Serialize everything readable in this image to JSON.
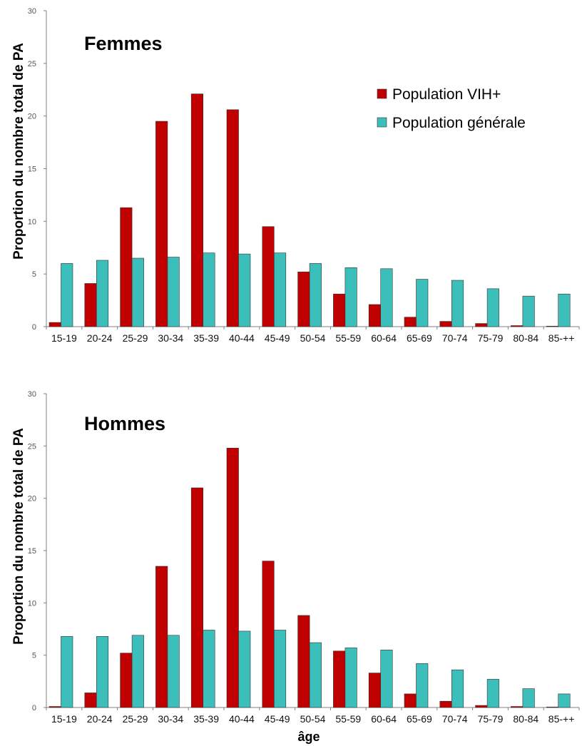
{
  "colors": {
    "vih": "#c00000",
    "generale": "#3cbfbb",
    "axis": "#808080"
  },
  "legend": {
    "series_1": "Population VIH+",
    "series_2": "Population générale"
  },
  "xlabel": "âge",
  "chart_data": [
    {
      "type": "bar",
      "title": "Femmes",
      "ylabel": "Proportion du nombre total de PA",
      "ylim": [
        0,
        30
      ],
      "yticks": [
        0,
        5,
        10,
        15,
        20,
        25,
        30
      ],
      "legend_position": "top-right",
      "categories": [
        "15-19",
        "20-24",
        "25-29",
        "30-34",
        "35-39",
        "40-44",
        "45-49",
        "50-54",
        "55-59",
        "60-64",
        "65-69",
        "70-74",
        "75-79",
        "80-84",
        "85-++"
      ],
      "series": [
        {
          "name": "Population VIH+",
          "values": [
            0.4,
            4.1,
            11.3,
            19.5,
            22.1,
            20.6,
            9.5,
            5.2,
            3.1,
            2.1,
            0.9,
            0.5,
            0.3,
            0.1,
            0.05
          ]
        },
        {
          "name": "Population générale",
          "values": [
            6.0,
            6.3,
            6.5,
            6.6,
            7.0,
            6.9,
            7.0,
            6.0,
            5.6,
            5.5,
            4.5,
            4.4,
            3.6,
            2.9,
            3.1
          ]
        }
      ]
    },
    {
      "type": "bar",
      "title": "Hommes",
      "ylabel": "Proportion du nombre total de PA",
      "xlabel": "âge",
      "ylim": [
        0,
        30
      ],
      "yticks": [
        0,
        5,
        10,
        15,
        20,
        25,
        30
      ],
      "categories": [
        "15-19",
        "20-24",
        "25-29",
        "30-34",
        "35-39",
        "40-44",
        "45-49",
        "50-54",
        "55-59",
        "60-64",
        "65-69",
        "70-74",
        "75-79",
        "80-84",
        "85-++"
      ],
      "series": [
        {
          "name": "Population VIH+",
          "values": [
            0.1,
            1.4,
            5.2,
            13.5,
            21.0,
            24.8,
            14.0,
            8.8,
            5.4,
            3.3,
            1.3,
            0.6,
            0.2,
            0.1,
            0.05
          ]
        },
        {
          "name": "Population générale",
          "values": [
            6.8,
            6.8,
            6.9,
            6.9,
            7.4,
            7.3,
            7.4,
            6.2,
            5.7,
            5.5,
            4.2,
            3.6,
            2.7,
            1.8,
            1.3
          ]
        }
      ]
    }
  ]
}
